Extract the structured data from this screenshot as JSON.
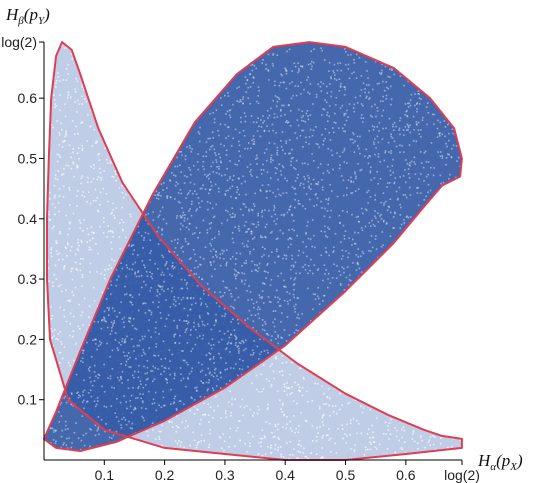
{
  "chart_data": {
    "type": "scatter",
    "title": "",
    "xlabel": "H_α(p_X)",
    "ylabel": "H_β(p_Y)",
    "xlim": [
      0,
      0.6931
    ],
    "ylim": [
      0,
      0.6931
    ],
    "x_ticks": [
      {
        "value": 0.1,
        "label": "0.1"
      },
      {
        "value": 0.2,
        "label": "0.2"
      },
      {
        "value": 0.3,
        "label": "0.3"
      },
      {
        "value": 0.4,
        "label": "0.4"
      },
      {
        "value": 0.5,
        "label": "0.5"
      },
      {
        "value": 0.6,
        "label": "0.6"
      },
      {
        "value": 0.6931,
        "label": "log(2)"
      }
    ],
    "y_ticks": [
      {
        "value": 0.1,
        "label": "0.1"
      },
      {
        "value": 0.2,
        "label": "0.2"
      },
      {
        "value": 0.3,
        "label": "0.3"
      },
      {
        "value": 0.4,
        "label": "0.4"
      },
      {
        "value": 0.5,
        "label": "0.5"
      },
      {
        "value": 0.6,
        "label": "0.6"
      },
      {
        "value": 0.6931,
        "label": "log(2)"
      }
    ],
    "series": [
      {
        "point_color": "#7090c8",
        "boundary_color": "#e03c52",
        "boundary": [
          [
            0.03,
            0.693
          ],
          [
            0.046,
            0.68
          ],
          [
            0.06,
            0.64
          ],
          [
            0.09,
            0.55
          ],
          [
            0.13,
            0.46
          ],
          [
            0.19,
            0.37
          ],
          [
            0.26,
            0.29
          ],
          [
            0.34,
            0.22
          ],
          [
            0.42,
            0.16
          ],
          [
            0.5,
            0.11
          ],
          [
            0.57,
            0.075
          ],
          [
            0.63,
            0.05
          ],
          [
            0.66,
            0.04
          ],
          [
            0.693,
            0.035
          ],
          [
            0.693,
            0.02
          ],
          [
            0.6,
            0.01
          ],
          [
            0.5,
            0.0
          ],
          [
            0.4,
            0.0
          ],
          [
            0.3,
            0.01
          ],
          [
            0.2,
            0.02
          ],
          [
            0.1,
            0.05
          ],
          [
            0.04,
            0.1
          ],
          [
            0.01,
            0.2
          ],
          [
            0.005,
            0.3
          ],
          [
            0.005,
            0.4
          ],
          [
            0.008,
            0.5
          ],
          [
            0.012,
            0.6
          ],
          [
            0.02,
            0.67
          ]
        ]
      },
      {
        "point_color": "#113e96",
        "boundary_color": "#e03c52",
        "boundary": [
          [
            0.0,
            0.035
          ],
          [
            0.02,
            0.02
          ],
          [
            0.06,
            0.015
          ],
          [
            0.12,
            0.03
          ],
          [
            0.2,
            0.065
          ],
          [
            0.3,
            0.12
          ],
          [
            0.4,
            0.19
          ],
          [
            0.5,
            0.28
          ],
          [
            0.58,
            0.36
          ],
          [
            0.63,
            0.42
          ],
          [
            0.66,
            0.455
          ],
          [
            0.69,
            0.47
          ],
          [
            0.693,
            0.5
          ],
          [
            0.68,
            0.55
          ],
          [
            0.64,
            0.6
          ],
          [
            0.58,
            0.65
          ],
          [
            0.5,
            0.685
          ],
          [
            0.44,
            0.693
          ],
          [
            0.38,
            0.685
          ],
          [
            0.32,
            0.64
          ],
          [
            0.25,
            0.56
          ],
          [
            0.18,
            0.44
          ],
          [
            0.11,
            0.3
          ],
          [
            0.06,
            0.18
          ],
          [
            0.02,
            0.08
          ]
        ]
      }
    ],
    "grid": false,
    "legend": "none"
  }
}
